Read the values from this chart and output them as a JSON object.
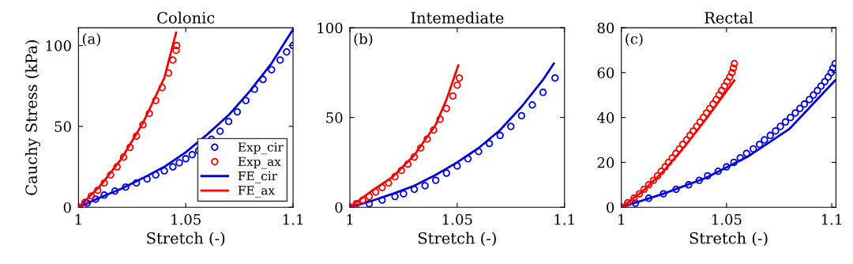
{
  "chart_data": [
    {
      "type": "line",
      "title": "Colonic",
      "xlabel": "Stretch (-)",
      "ylabel": "Cauchy Stress (kPa)",
      "annotations": [
        "(a)"
      ],
      "xlim": [
        1,
        1.1
      ],
      "ylim": [
        0,
        111
      ],
      "xticks": [
        1,
        1.05,
        1.1
      ],
      "yticks": [
        0,
        50,
        100
      ],
      "grid": false,
      "legend": "bottom right",
      "series": [
        {
          "name": "Exp_cir",
          "type": "scatter",
          "marker": "circle",
          "color": "#0000e6",
          "x": [
            1.0,
            1.004,
            1.008,
            1.012,
            1.017,
            1.022,
            1.027,
            1.032,
            1.036,
            1.04,
            1.044,
            1.047,
            1.05,
            1.053,
            1.056,
            1.059,
            1.062,
            1.066,
            1.07,
            1.074,
            1.078,
            1.082,
            1.086,
            1.09,
            1.094,
            1.097,
            1.1
          ],
          "values": [
            0,
            2.5,
            5,
            7.5,
            10,
            12.5,
            15,
            17.5,
            20,
            22.5,
            25,
            27.5,
            30,
            32.5,
            35,
            null,
            42,
            47,
            53,
            59,
            66,
            73,
            79,
            85,
            91,
            96,
            100
          ]
        },
        {
          "name": "Exp_ax",
          "type": "scatter",
          "marker": "circle",
          "color": "#ff0000",
          "x": [
            1.0,
            1.003,
            1.006,
            1.009,
            1.012,
            1.015,
            1.018,
            1.021,
            1.024,
            1.027,
            1.03,
            1.033,
            1.036,
            1.039,
            1.042,
            1.044,
            1.0455,
            1.0458
          ],
          "values": [
            0,
            3,
            7,
            10.5,
            15,
            20,
            25,
            31,
            37,
            44,
            51,
            58,
            66,
            74,
            83,
            91,
            97,
            100
          ]
        },
        {
          "name": "FE_cir",
          "line_style": "solid",
          "color": "#0000e6",
          "x": [
            1.0,
            1.01,
            1.02,
            1.03,
            1.04,
            1.05,
            1.06,
            1.07,
            1.08,
            1.09,
            1.1
          ],
          "values": [
            0,
            6,
            11.5,
            18,
            25,
            34,
            45,
            57,
            72,
            89,
            110
          ]
        },
        {
          "name": "FE_ax",
          "line_style": "solid",
          "color": "#ff0000",
          "x": [
            1.0,
            1.01,
            1.02,
            1.03,
            1.04,
            1.0455
          ],
          "values": [
            0,
            13,
            30,
            52,
            80,
            108
          ]
        }
      ]
    },
    {
      "type": "line",
      "title": "Intemediate",
      "xlabel": "Stretch (-)",
      "annotations": [
        "(b)"
      ],
      "xlim": [
        1,
        1.1
      ],
      "ylim": [
        0,
        100
      ],
      "xticks": [
        1,
        1.05,
        1.1
      ],
      "yticks": [
        0,
        50,
        100
      ],
      "grid": false,
      "legend": false,
      "series": [
        {
          "type": "scatter",
          "marker": "circle",
          "color": "#0000e6",
          "x": [
            1.0,
            1.009,
            1.015,
            1.021,
            1.025,
            1.03,
            1.035,
            1.04,
            1.045,
            1.05,
            1.055,
            1.06,
            1.065,
            1.07,
            1.075,
            1.08,
            1.085,
            1.09,
            1.0956
          ],
          "values": [
            0,
            2,
            4,
            6,
            7.5,
            10,
            12,
            15,
            19,
            23,
            27,
            31,
            35.5,
            40,
            45,
            51,
            57,
            64,
            72
          ]
        },
        {
          "type": "scatter",
          "marker": "circle",
          "color": "#ff0000",
          "x": [
            1.0,
            1.003,
            1.006,
            1.009,
            1.012,
            1.015,
            1.018,
            1.021,
            1.024,
            1.027,
            1.03,
            1.033,
            1.036,
            1.039,
            1.042,
            1.045,
            1.048,
            1.05,
            1.051
          ],
          "values": [
            0,
            2,
            4,
            6,
            8.5,
            11,
            13.5,
            17,
            20.5,
            24,
            28,
            33,
            38,
            43,
            49,
            55,
            62,
            68,
            72
          ]
        },
        {
          "type": "line",
          "line_style": "solid",
          "color": "#0000e6",
          "x": [
            1.0,
            1.01,
            1.02,
            1.03,
            1.04,
            1.05,
            1.06,
            1.07,
            1.08,
            1.09,
            1.095
          ],
          "values": [
            0,
            3.5,
            7.5,
            12,
            18,
            25,
            33,
            43,
            56,
            71,
            80
          ]
        },
        {
          "type": "line",
          "line_style": "solid",
          "color": "#ff0000",
          "x": [
            1.0,
            1.01,
            1.02,
            1.03,
            1.04,
            1.045,
            1.0505
          ],
          "values": [
            0,
            9,
            17,
            29,
            46,
            60,
            79
          ]
        }
      ]
    },
    {
      "type": "line",
      "title": "Rectal",
      "xlabel": "Stretch (-)",
      "annotations": [
        "(c)"
      ],
      "xlim": [
        1,
        1.102
      ],
      "ylim": [
        0,
        80
      ],
      "xticks": [
        1,
        1.05,
        1.1
      ],
      "yticks": [
        0,
        20,
        40,
        60,
        80
      ],
      "grid": false,
      "legend": false,
      "series": [
        {
          "type": "scatter",
          "marker": "circle",
          "color": "#0000e6",
          "x": [
            1.0,
            1.0067,
            1.013,
            1.02,
            1.026,
            1.032,
            1.037,
            1.041,
            1.046,
            1.05,
            1.0535,
            1.0565,
            1.0595,
            1.0627,
            1.0657,
            1.068,
            1.0708,
            1.0733,
            1.0756,
            1.078,
            1.0804,
            1.0827,
            1.0849,
            1.087,
            1.0894,
            1.0913,
            1.0932,
            1.0949,
            1.0967,
            1.0983,
            1.0997,
            1.1006,
            1.1016
          ],
          "values": [
            0,
            1.8,
            4,
            6,
            8,
            10,
            12,
            14,
            16,
            18,
            20,
            22,
            24,
            26,
            28,
            30,
            32,
            34,
            36,
            38,
            40,
            42,
            44,
            46,
            48,
            50,
            52,
            54,
            56,
            58,
            60,
            62,
            64
          ]
        },
        {
          "type": "scatter",
          "marker": "circle",
          "color": "#ff0000",
          "x": [
            1.0,
            1.003,
            1.006,
            1.0086,
            1.0108,
            1.013,
            1.0153,
            1.0172,
            1.019,
            1.0208,
            1.0224,
            1.0242,
            1.0259,
            1.0276,
            1.0292,
            1.031,
            1.0326,
            1.0342,
            1.0358,
            1.0374,
            1.039,
            1.0405,
            1.042,
            1.0436,
            1.0451,
            1.0464,
            1.0477,
            1.049,
            1.0503,
            1.0515,
            1.0526,
            1.0532,
            1.0537
          ],
          "values": [
            0,
            2,
            4,
            6,
            8,
            10,
            12,
            14,
            16,
            18,
            20,
            22,
            24,
            26,
            28,
            30,
            32,
            34,
            36,
            38,
            40,
            42,
            44,
            46,
            48,
            50,
            52,
            54,
            56,
            58,
            60,
            62,
            64
          ]
        },
        {
          "type": "line",
          "line_style": "solid",
          "color": "#0000e6",
          "x": [
            1.0,
            1.02,
            1.04,
            1.06,
            1.08,
            1.1016
          ],
          "values": [
            0,
            6,
            13,
            22.5,
            35,
            56.5
          ]
        },
        {
          "type": "line",
          "line_style": "solid",
          "color": "#ff0000",
          "x": [
            1.0,
            1.01,
            1.02,
            1.03,
            1.04,
            1.0537
          ],
          "values": [
            0,
            7,
            16,
            27,
            39,
            56.5
          ]
        }
      ]
    }
  ]
}
